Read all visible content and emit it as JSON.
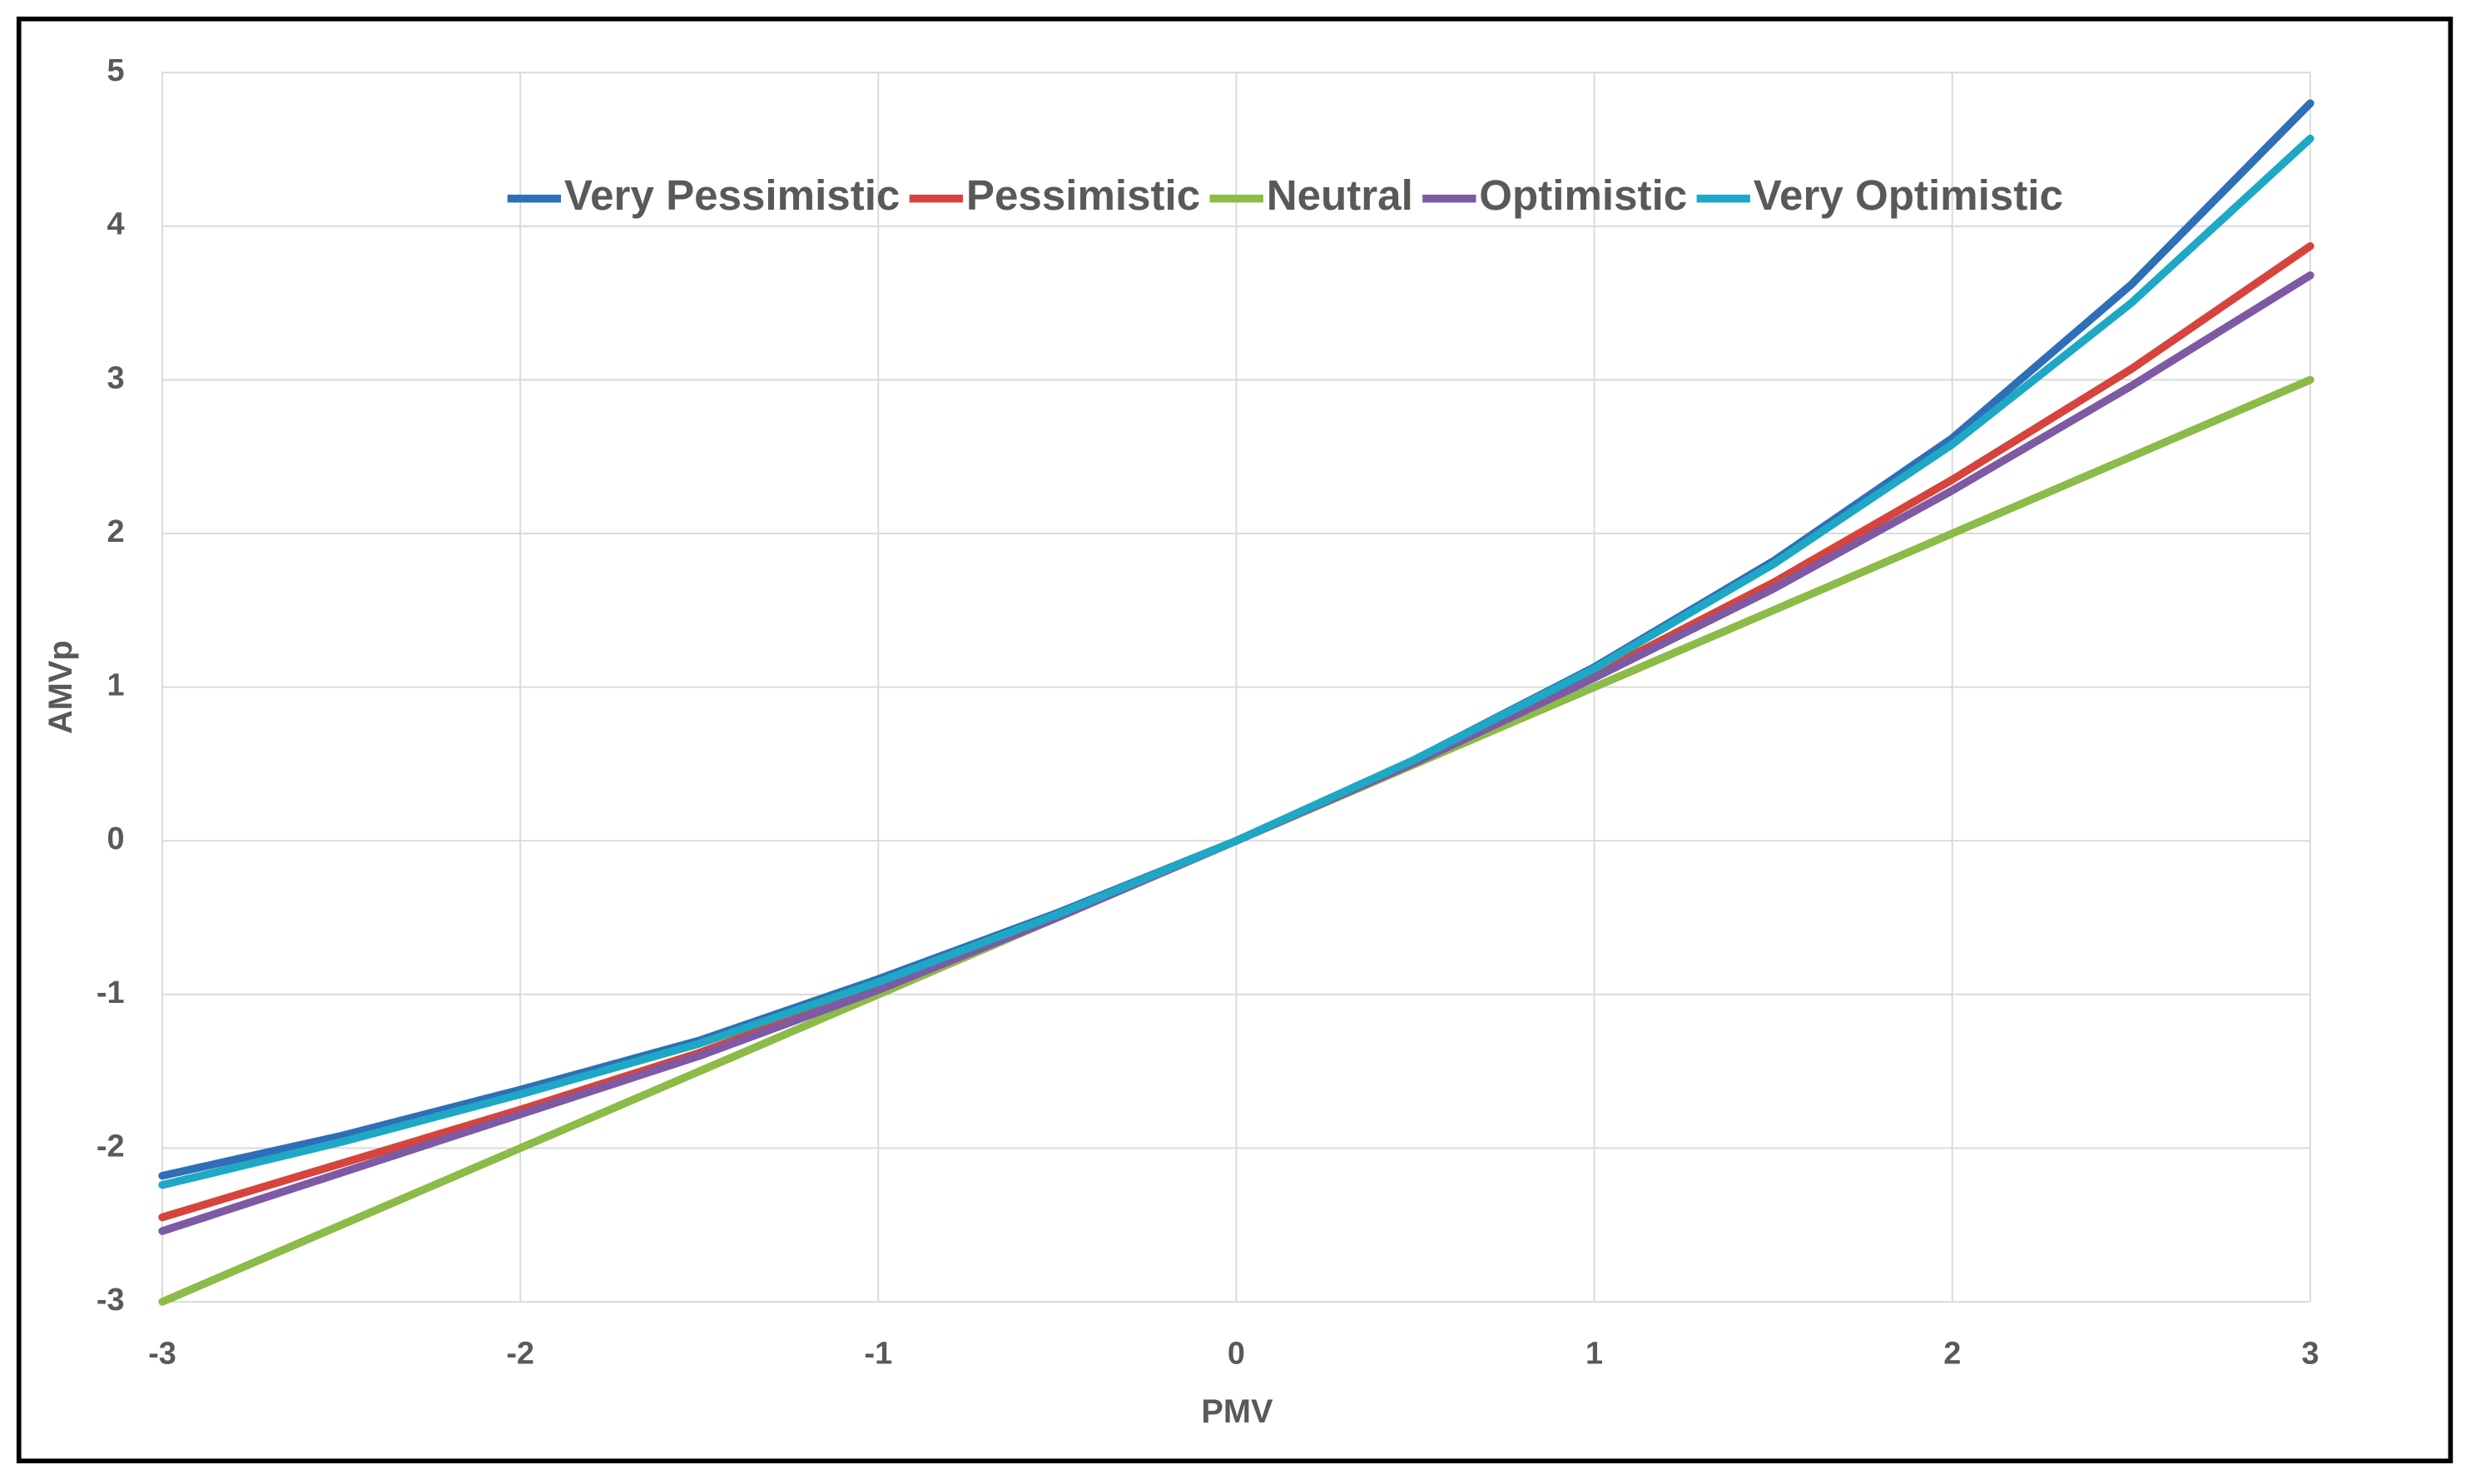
{
  "chart_data": {
    "type": "line",
    "x_label": "PMV",
    "y_label": "AMVp",
    "x": [
      -3,
      -2.5,
      -2,
      -1.5,
      -1,
      -0.5,
      0,
      0.5,
      1,
      1.5,
      2,
      2.5,
      3
    ],
    "series": [
      {
        "name": "Very Pessimistic",
        "color": "#2e6fb7",
        "values": [
          -2.18,
          -1.92,
          -1.62,
          -1.3,
          -0.9,
          -0.47,
          0,
          0.53,
          1.13,
          1.82,
          2.62,
          3.62,
          4.8
        ]
      },
      {
        "name": "Pessimistic",
        "color": "#d6443d",
        "values": [
          -2.45,
          -2.1,
          -1.75,
          -1.38,
          -0.95,
          -0.49,
          0,
          0.52,
          1.08,
          1.68,
          2.35,
          3.07,
          3.87
        ]
      },
      {
        "name": "Neutral",
        "color": "#8cbb47",
        "values": [
          -3,
          -2.5,
          -2,
          -1.5,
          -1,
          -0.5,
          0,
          0.5,
          1,
          1.5,
          2,
          2.5,
          3
        ]
      },
      {
        "name": "Optimistic",
        "color": "#7d5aa3",
        "values": [
          -2.54,
          -2.16,
          -1.78,
          -1.4,
          -0.97,
          -0.5,
          0,
          0.51,
          1.06,
          1.64,
          2.28,
          2.96,
          3.68
        ]
      },
      {
        "name": "Very Optimistic",
        "color": "#1ea8c5",
        "values": [
          -2.24,
          -1.96,
          -1.65,
          -1.32,
          -0.92,
          -0.48,
          0,
          0.53,
          1.12,
          1.8,
          2.58,
          3.5,
          4.57
        ]
      }
    ],
    "xlim": [
      -3,
      3
    ],
    "xticks": [
      -3,
      -2,
      -1,
      0,
      1,
      2,
      3
    ],
    "ylim": [
      -3,
      5
    ],
    "yticks": [
      -3,
      -2,
      -1,
      0,
      1,
      2,
      3,
      4,
      5
    ],
    "grid": true,
    "legend": "top"
  }
}
